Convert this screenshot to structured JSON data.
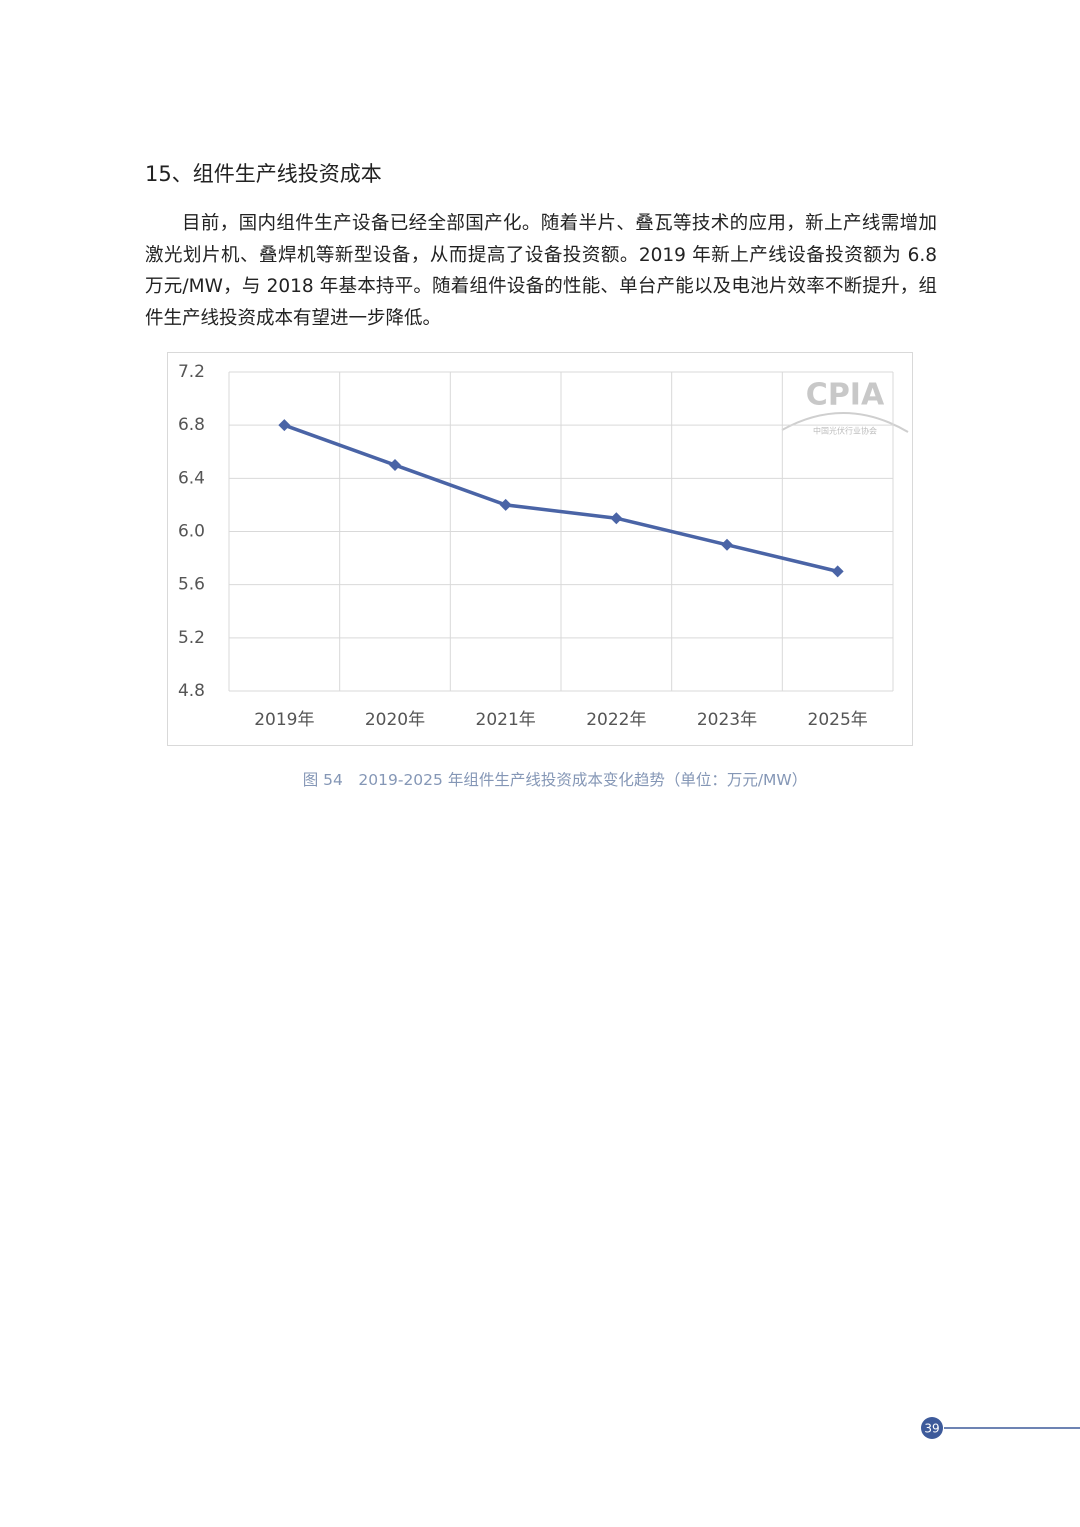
{
  "heading": "15、组件生产线投资成本",
  "paragraph": "目前，国内组件生产设备已经全部国产化。随着半片、叠瓦等技术的应用，新上产线需增加激光划片机、叠焊机等新型设备，从而提高了设备投资额。2019 年新上产线设备投资额为 6.8 万元/MW，与 2018 年基本持平。随着组件设备的性能、单台产能以及电池片效率不断提升，组件生产线投资成本有望进一步降低。",
  "chart_data": {
    "type": "line",
    "categories": [
      "2019年",
      "2020年",
      "2021年",
      "2022年",
      "2023年",
      "2025年"
    ],
    "values": [
      6.8,
      6.5,
      6.2,
      6.1,
      5.9,
      5.7
    ],
    "color": "#4a64a6",
    "ylim": [
      4.8,
      7.2
    ],
    "yticks": [
      4.8,
      5.2,
      5.6,
      {
        "value": 6,
        "label": "6.0"
      },
      6.4,
      6.8,
      7.2
    ],
    "grid": true
  },
  "watermark": {
    "logo": "CPIA",
    "org": "中国光伏行业协会"
  },
  "caption": "图 54　2019-2025 年组件生产线投资成本变化趋势（单位：万元/MW）",
  "page_number": "39"
}
